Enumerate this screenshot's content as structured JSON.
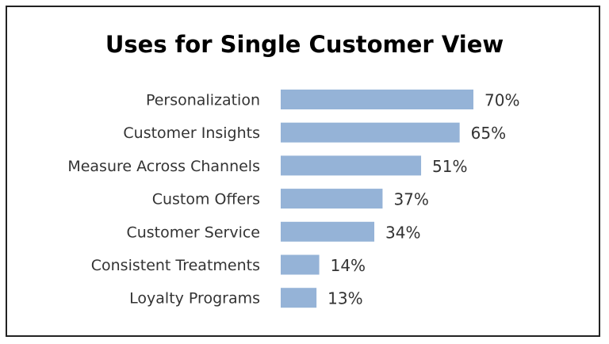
{
  "chart_data": {
    "type": "bar",
    "orientation": "horizontal",
    "title": "Uses for Single Customer View",
    "categories": [
      "Personalization",
      "Customer Insights",
      "Measure Across Channels",
      "Custom Offers",
      "Customer Service",
      "Consistent Treatments",
      "Loyalty Programs"
    ],
    "values": [
      70,
      65,
      51,
      37,
      34,
      14,
      13
    ],
    "data_labels": [
      "70%",
      "65%",
      "51%",
      "37%",
      "34%",
      "14%",
      "13%"
    ],
    "unit": "%",
    "bar_color": "#95b3d7",
    "grid": false,
    "legend": "none"
  }
}
